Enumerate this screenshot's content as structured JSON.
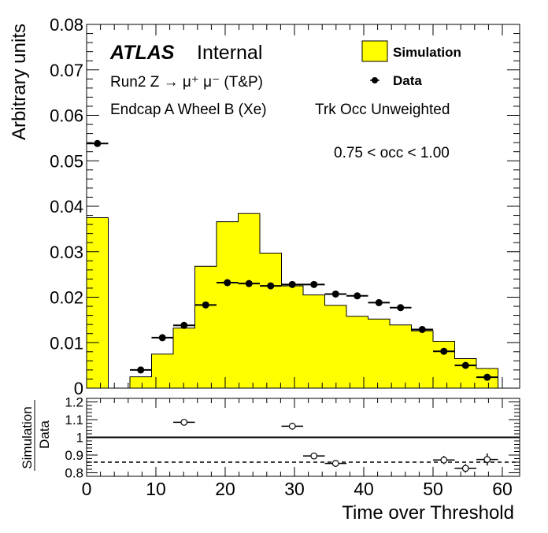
{
  "chart_data": [
    {
      "type": "bar",
      "panel": "main",
      "ylabel": "Arbitrary units",
      "ylim": [
        0,
        0.08
      ],
      "yticks": [
        "0",
        "0.01",
        "0.02",
        "0.03",
        "0.04",
        "0.05",
        "0.06",
        "0.07",
        "0.08"
      ],
      "xlim": [
        0,
        62.5
      ],
      "bin_width": 3.125,
      "annotations": {
        "atlas": "ATLAS",
        "internal": "Internal",
        "process": "Run2 Z → μ⁺ μ⁻ (T&P)",
        "region": "Endcap A Wheel B (Xe)",
        "weighting": "Trk Occ Unweighted",
        "occupancy": "0.75 < occ < 1.00"
      },
      "legend": {
        "placement": "top-right",
        "entries": [
          {
            "label": "Simulation",
            "style": "fill",
            "color": "#ffff00"
          },
          {
            "label": "Data",
            "style": "marker",
            "color": "#000000"
          }
        ]
      },
      "series": [
        {
          "name": "Simulation",
          "kind": "histogram",
          "color": "#ffff00",
          "bin_edges": [
            0,
            3.125,
            6.25,
            9.375,
            12.5,
            15.625,
            18.75,
            21.875,
            25,
            28.125,
            31.25,
            34.375,
            37.5,
            40.625,
            43.75,
            46.875,
            50,
            53.125,
            56.25,
            59.375
          ],
          "values": [
            0.0375,
            0,
            0.0025,
            0.0075,
            0.0132,
            0.0268,
            0.0366,
            0.0384,
            0.0297,
            0.0225,
            0.0205,
            0.0182,
            0.0158,
            0.0152,
            0.0139,
            0.0126,
            0.0103,
            0.0065,
            0.0043
          ]
        },
        {
          "name": "Data",
          "kind": "points",
          "color": "#000000",
          "x": [
            1.5625,
            7.8125,
            10.9375,
            14.0625,
            17.1875,
            20.3125,
            23.4375,
            26.5625,
            29.6875,
            32.8125,
            35.9375,
            39.0625,
            42.1875,
            45.3125,
            48.4375,
            51.5625,
            54.6875,
            57.8125
          ],
          "y": [
            0.0538,
            0.004,
            0.0111,
            0.0138,
            0.0183,
            0.0232,
            0.023,
            0.0225,
            0.0228,
            0.0228,
            0.0207,
            0.0203,
            0.0188,
            0.0177,
            0.0129,
            0.0081,
            0.005,
            0.0024
          ]
        }
      ]
    },
    {
      "type": "scatter",
      "panel": "ratio",
      "xlabel": "Time over Threshold",
      "ylabel": "Simulation",
      "ylabel_denominator": "Data",
      "ylim": [
        0.78,
        1.22
      ],
      "yticks": [
        "0.8",
        "0.9",
        "1",
        "1.1",
        "1.2"
      ],
      "xlim": [
        0,
        62.5
      ],
      "xticks": [
        "0",
        "10",
        "20",
        "30",
        "40",
        "50",
        "60"
      ],
      "reference_lines": {
        "solid": 1.0,
        "dashed": 0.86
      },
      "series": [
        {
          "kind": "points",
          "color": "#000000",
          "x": [
            14.0625,
            29.6875,
            32.8125,
            35.9375,
            51.5625,
            54.6875,
            57.8125
          ],
          "y": [
            1.085,
            1.063,
            0.895,
            0.853,
            0.872,
            0.825,
            0.875
          ],
          "yerr": [
            0.012,
            0.012,
            0.012,
            0.014,
            0.023,
            0.024,
            0.034
          ]
        }
      ]
    }
  ]
}
